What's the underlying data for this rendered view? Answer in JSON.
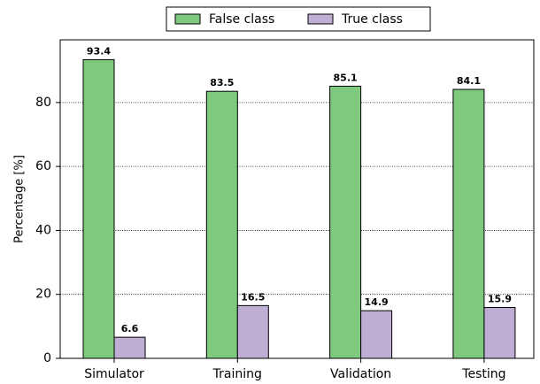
{
  "chart_data": {
    "type": "bar",
    "categories": [
      "Simulator",
      "Training",
      "Validation",
      "Testing"
    ],
    "series": [
      {
        "name": "False class",
        "color": "#7fc97f",
        "values": [
          93.4,
          83.5,
          85.1,
          84.1
        ]
      },
      {
        "name": "True class",
        "color": "#beaed4",
        "values": [
          6.6,
          16.5,
          14.9,
          15.9
        ]
      }
    ],
    "ylabel": "Percentage [%]",
    "ylim": [
      0,
      99.6
    ],
    "yticks": [
      0,
      20,
      40,
      60,
      80
    ],
    "grid": true,
    "legend": "top"
  }
}
